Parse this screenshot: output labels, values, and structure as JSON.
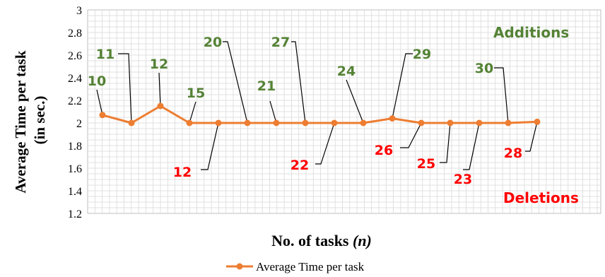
{
  "chart_data": {
    "type": "line",
    "xlabel_main": "No. of tasks ",
    "xlabel_italic": "(n)",
    "ylabel_line1": "Average Time per task",
    "ylabel_line2": "(in sec.)",
    "ylim": [
      1.2,
      3
    ],
    "yticks": [
      "3",
      "2.8",
      "2.6",
      "2.4",
      "2.2",
      "2",
      "1.8",
      "1.6",
      "1.4",
      "1.2"
    ],
    "grid": true,
    "legend_position": "bottom",
    "series": [
      {
        "name": "Average Time per task",
        "color": "#ED7D31",
        "values": [
          2.07,
          2.0,
          2.15,
          2.0,
          2.0,
          2.0,
          2.0,
          2.0,
          2.0,
          2.0,
          2.04,
          2.0,
          2.0,
          2.0,
          2.0,
          2.01
        ]
      }
    ],
    "annotations": {
      "additions_color": "#548235",
      "deletions_color": "#FF0000",
      "additions_title": "Additions",
      "deletions_title": "Deletions",
      "additions": [
        {
          "label": "10",
          "point": 0
        },
        {
          "label": "11",
          "point": 1
        },
        {
          "label": "12",
          "point": 2
        },
        {
          "label": "15",
          "point": 3
        },
        {
          "label": "20",
          "point": 5
        },
        {
          "label": "21",
          "point": 6
        },
        {
          "label": "27",
          "point": 7
        },
        {
          "label": "24",
          "point": 9
        },
        {
          "label": "29",
          "point": 10
        },
        {
          "label": "30",
          "point": 14
        }
      ],
      "deletions": [
        {
          "label": "12",
          "point": 4
        },
        {
          "label": "22",
          "point": 8
        },
        {
          "label": "26",
          "point": 11
        },
        {
          "label": "25",
          "point": 12
        },
        {
          "label": "23",
          "point": 13
        },
        {
          "label": "28",
          "point": 15
        }
      ]
    }
  }
}
